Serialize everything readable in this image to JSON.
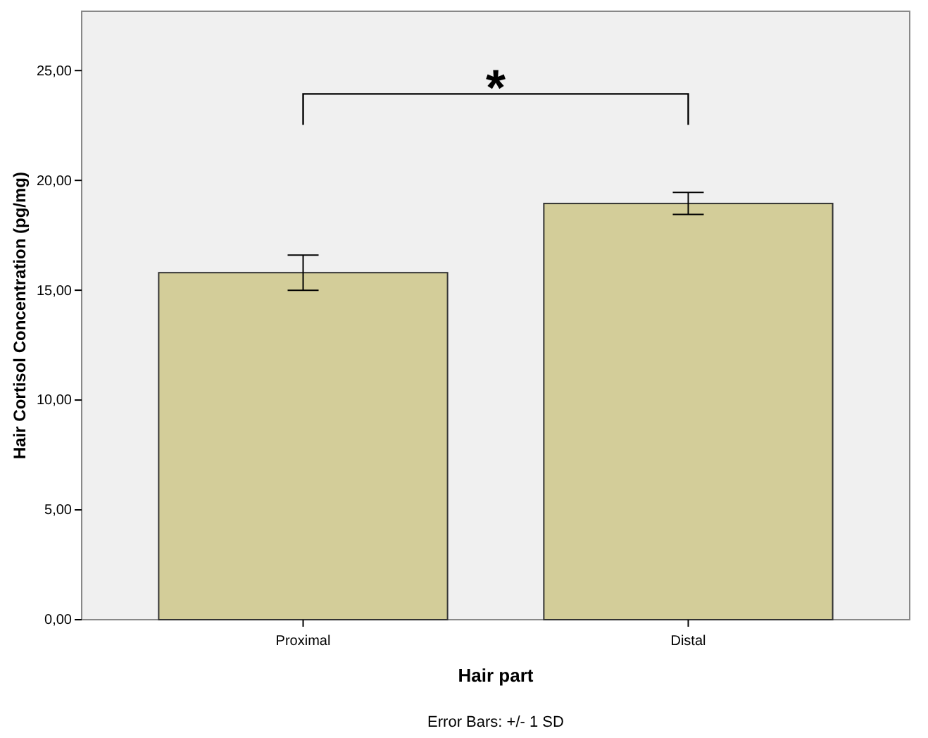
{
  "chart_data": {
    "type": "bar",
    "xlabel": "Hair part",
    "ylabel": "Hair Cortisol Concentration (pg/mg)",
    "categories": [
      "Proximal",
      "Distal"
    ],
    "values": [
      15.8,
      18.95
    ],
    "errors": [
      0.8,
      0.5
    ],
    "color": "#d3cd99",
    "ylim": [
      0,
      27.7
    ],
    "yticks": [
      {
        "value": 0,
        "label": "0,00"
      },
      {
        "value": 5,
        "label": "5,00"
      },
      {
        "value": 10,
        "label": "10,00"
      },
      {
        "value": 15,
        "label": "15,00"
      },
      {
        "value": 20,
        "label": "20,00"
      },
      {
        "value": 25,
        "label": "25,00"
      }
    ],
    "grid": false,
    "annotations": [
      "*",
      "Error Bars: +/- 1 SD"
    ]
  }
}
